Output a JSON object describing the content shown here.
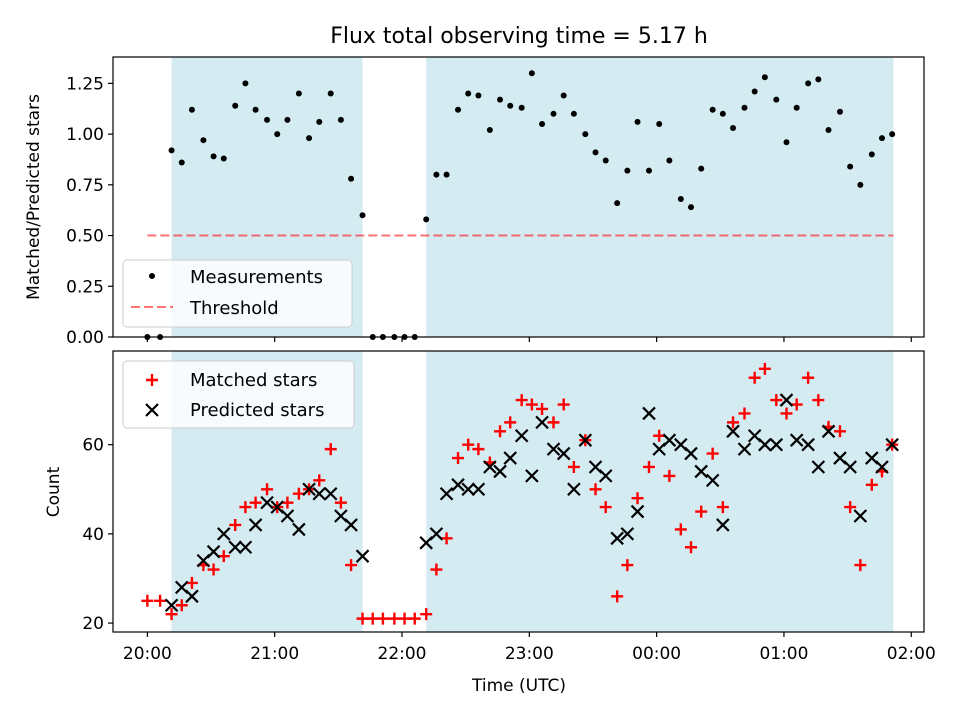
{
  "title": "Flux total observing time = 5.17 h",
  "colors": {
    "shade": "#add8e6",
    "threshold": "#ff0000",
    "measurements": "#000000",
    "matched": "#ff0000",
    "predicted": "#000000"
  },
  "chart_data": [
    {
      "type": "scatter",
      "ylabel": "Matched/Predicted stars",
      "xlim": [
        -0.27,
        6.1
      ],
      "ylim": [
        0,
        1.38
      ],
      "yticks": [
        "0.00",
        "0.25",
        "0.50",
        "0.75",
        "1.00",
        "1.25"
      ],
      "ytick_values": [
        0,
        0.25,
        0.5,
        0.75,
        1.0,
        1.25
      ],
      "shaded_intervals": [
        [
          0.19,
          1.69
        ],
        [
          2.19,
          5.86
        ]
      ],
      "threshold": {
        "name": "Threshold",
        "y": 0.5,
        "x": [
          0.0,
          5.86
        ]
      },
      "legend": {
        "location": "lower-left",
        "entries": [
          "Measurements",
          "Threshold"
        ]
      },
      "series": [
        {
          "name": "Measurements",
          "x": [
            0.0,
            0.1,
            0.19,
            0.27,
            0.35,
            0.44,
            0.52,
            0.6,
            0.69,
            0.77,
            0.85,
            0.94,
            1.02,
            1.1,
            1.19,
            1.27,
            1.35,
            1.44,
            1.52,
            1.6,
            1.69,
            1.77,
            1.85,
            1.94,
            2.02,
            2.1,
            2.19,
            2.27,
            2.35,
            2.44,
            2.52,
            2.6,
            2.69,
            2.77,
            2.85,
            2.94,
            3.02,
            3.1,
            3.19,
            3.27,
            3.35,
            3.44,
            3.52,
            3.6,
            3.69,
            3.77,
            3.85,
            3.94,
            4.02,
            4.1,
            4.19,
            4.27,
            4.35,
            4.44,
            4.52,
            4.6,
            4.69,
            4.77,
            4.85,
            4.94,
            5.02,
            5.1,
            5.19,
            5.27,
            5.35,
            5.44,
            5.52,
            5.6,
            5.69,
            5.77,
            5.85
          ],
          "y": [
            0.0,
            0.0,
            0.92,
            0.86,
            1.12,
            0.97,
            0.89,
            0.88,
            1.14,
            1.25,
            1.12,
            1.07,
            1.0,
            1.07,
            1.2,
            0.98,
            1.06,
            1.2,
            1.07,
            0.78,
            0.6,
            0.0,
            0.0,
            0.0,
            0.0,
            0.0,
            0.58,
            0.8,
            0.8,
            1.12,
            1.2,
            1.19,
            1.02,
            1.17,
            1.14,
            1.13,
            1.3,
            1.05,
            1.1,
            1.19,
            1.1,
            1.0,
            0.91,
            0.87,
            0.66,
            0.82,
            1.06,
            0.82,
            1.05,
            0.87,
            0.68,
            0.64,
            0.83,
            1.12,
            1.1,
            1.03,
            1.13,
            1.21,
            1.28,
            1.17,
            0.96,
            1.13,
            1.25,
            1.27,
            1.02,
            1.11,
            0.84,
            0.75,
            0.9,
            0.98,
            1.0
          ]
        }
      ]
    },
    {
      "type": "scatter",
      "xlabel": "Time (UTC)",
      "ylabel": "Count",
      "xlim": [
        -0.27,
        6.1
      ],
      "ylim": [
        18,
        81
      ],
      "yticks": [
        "20",
        "40",
        "60"
      ],
      "ytick_values": [
        20,
        40,
        60
      ],
      "xticks": [
        "20:00",
        "21:00",
        "22:00",
        "23:00",
        "00:00",
        "01:00",
        "02:00"
      ],
      "xtick_values": [
        0,
        1,
        2,
        3,
        4,
        5,
        6
      ],
      "shaded_intervals": [
        [
          0.19,
          1.69
        ],
        [
          2.19,
          5.86
        ]
      ],
      "legend": {
        "location": "top-left",
        "entries": [
          "Matched stars",
          "Predicted stars"
        ]
      },
      "series": [
        {
          "name": "Matched stars",
          "marker": "plus",
          "x": [
            0.0,
            0.1,
            0.19,
            0.27,
            0.35,
            0.44,
            0.52,
            0.6,
            0.69,
            0.77,
            0.85,
            0.94,
            1.02,
            1.1,
            1.19,
            1.27,
            1.35,
            1.44,
            1.52,
            1.6,
            1.69,
            1.77,
            1.85,
            1.94,
            2.02,
            2.1,
            2.19,
            2.27,
            2.35,
            2.44,
            2.52,
            2.6,
            2.69,
            2.77,
            2.85,
            2.94,
            3.02,
            3.1,
            3.19,
            3.27,
            3.35,
            3.44,
            3.52,
            3.6,
            3.69,
            3.77,
            3.85,
            3.94,
            4.02,
            4.1,
            4.19,
            4.27,
            4.35,
            4.44,
            4.52,
            4.6,
            4.69,
            4.77,
            4.85,
            4.94,
            5.02,
            5.1,
            5.19,
            5.27,
            5.35,
            5.44,
            5.52,
            5.6,
            5.69,
            5.77,
            5.85
          ],
          "y": [
            25,
            25,
            22,
            24,
            29,
            33,
            32,
            35,
            42,
            46,
            47,
            50,
            46,
            47,
            49,
            50,
            52,
            59,
            47,
            33,
            21,
            21,
            21,
            21,
            21,
            21,
            22,
            32,
            39,
            57,
            60,
            59,
            56,
            63,
            65,
            70,
            69,
            68,
            65,
            69,
            55,
            61,
            50,
            46,
            26,
            33,
            48,
            55,
            62,
            53,
            41,
            37,
            45,
            58,
            46,
            65,
            67,
            75,
            77,
            70,
            67,
            69,
            75,
            70,
            64,
            63,
            46,
            33,
            51,
            54,
            60
          ]
        },
        {
          "name": "Predicted stars",
          "marker": "x",
          "x": [
            0.19,
            0.27,
            0.35,
            0.44,
            0.52,
            0.6,
            0.69,
            0.77,
            0.85,
            0.94,
            1.02,
            1.1,
            1.19,
            1.27,
            1.35,
            1.44,
            1.52,
            1.6,
            1.69,
            2.19,
            2.27,
            2.35,
            2.44,
            2.52,
            2.6,
            2.69,
            2.77,
            2.85,
            2.94,
            3.02,
            3.1,
            3.19,
            3.27,
            3.35,
            3.44,
            3.52,
            3.6,
            3.69,
            3.77,
            3.85,
            3.94,
            4.02,
            4.1,
            4.19,
            4.27,
            4.35,
            4.44,
            4.52,
            4.6,
            4.69,
            4.77,
            4.85,
            4.94,
            5.02,
            5.1,
            5.19,
            5.27,
            5.35,
            5.44,
            5.52,
            5.6,
            5.69,
            5.77,
            5.85
          ],
          "y": [
            24,
            28,
            26,
            34,
            36,
            40,
            37,
            37,
            42,
            47,
            46,
            44,
            41,
            50,
            49,
            49,
            44,
            42,
            35,
            38,
            40,
            49,
            51,
            50,
            50,
            55,
            54,
            57,
            62,
            53,
            65,
            59,
            58,
            50,
            61,
            55,
            53,
            39,
            40,
            45,
            67,
            59,
            61,
            60,
            58,
            54,
            52,
            42,
            63,
            59,
            62,
            60,
            60,
            70,
            61,
            60,
            55,
            63,
            57,
            55,
            44,
            57,
            55,
            60
          ]
        }
      ]
    }
  ]
}
